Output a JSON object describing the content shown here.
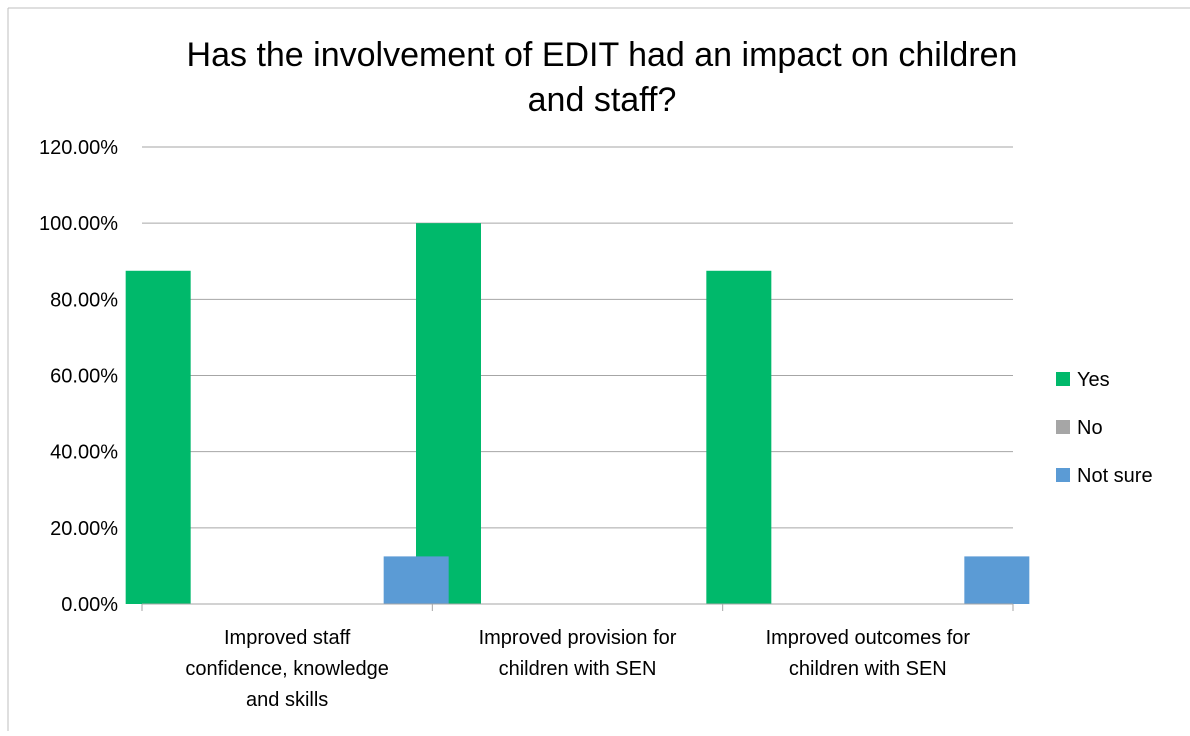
{
  "chart_data": {
    "type": "bar",
    "title_lines": [
      "Has the involvement of EDIT had an impact on children",
      "and staff?"
    ],
    "categories": [
      [
        "Improved staff",
        "confidence, knowledge",
        "and skills"
      ],
      [
        "Improved provision for",
        "children with SEN"
      ],
      [
        "Improved outcomes for",
        "children with SEN"
      ]
    ],
    "series": [
      {
        "name": "Yes",
        "color": "#00B96B",
        "values": [
          87.5,
          100,
          87.5
        ]
      },
      {
        "name": "No",
        "color": "#A6A6A6",
        "values": [
          0,
          0,
          0
        ]
      },
      {
        "name": "Not sure",
        "color": "#5B9BD5",
        "values": [
          12.5,
          0,
          12.5
        ]
      }
    ],
    "ylim": [
      0,
      120
    ],
    "yticks": [
      0,
      20,
      40,
      60,
      80,
      100,
      120
    ],
    "ytick_labels": [
      "0.00%",
      "20.00%",
      "40.00%",
      "60.00%",
      "80.00%",
      "100.00%",
      "120.00%"
    ],
    "grid": true,
    "legend_position": "right",
    "xlabel": "",
    "ylabel": ""
  }
}
